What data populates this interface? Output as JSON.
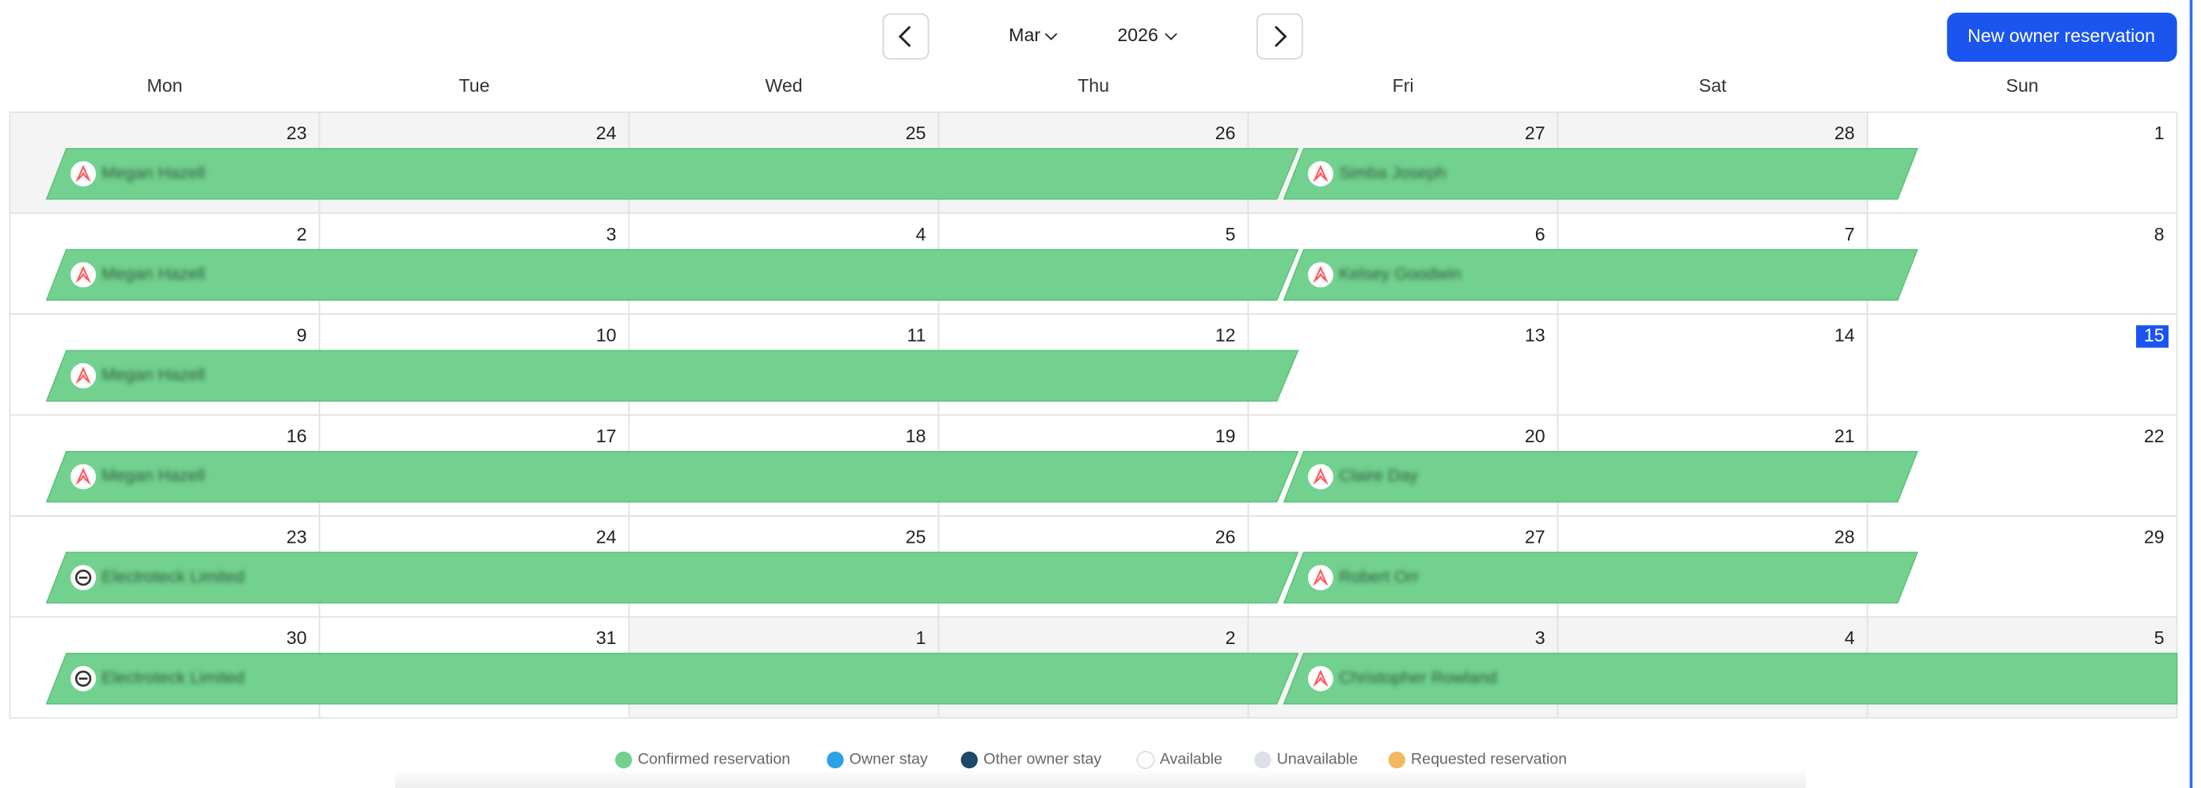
{
  "header": {
    "month": "Mar",
    "year": "2026",
    "new_button": "New owner reservation"
  },
  "weekdays": [
    "Mon",
    "Tue",
    "Wed",
    "Thu",
    "Fri",
    "Sat",
    "Sun"
  ],
  "weeks": [
    {
      "days": [
        "23",
        "24",
        "25",
        "26",
        "27",
        "28",
        "1"
      ],
      "reservations": [
        "Megan Hazell",
        "Simba Joseph"
      ]
    },
    {
      "days": [
        "2",
        "3",
        "4",
        "5",
        "6",
        "7",
        "8"
      ],
      "reservations": [
        "Megan Hazell",
        "Kelsey Goodwin"
      ]
    },
    {
      "days": [
        "9",
        "10",
        "11",
        "12",
        "13",
        "14",
        "15"
      ],
      "reservations": [
        "Megan Hazell"
      ]
    },
    {
      "days": [
        "16",
        "17",
        "18",
        "19",
        "20",
        "21",
        "22"
      ],
      "reservations": [
        "Megan Hazell",
        "Claire Day"
      ]
    },
    {
      "days": [
        "23",
        "24",
        "25",
        "26",
        "27",
        "28",
        "29"
      ],
      "reservations": [
        "Electroteck Limited",
        "Robert Orr"
      ]
    },
    {
      "days": [
        "30",
        "31",
        "1",
        "2",
        "3",
        "4",
        "5"
      ],
      "reservations": [
        "Electroteck Limited",
        "Christopher Rowland"
      ]
    }
  ],
  "legend": [
    "Confirmed reservation",
    "Owner stay",
    "Other owner stay",
    "Available",
    "Unavailable",
    "Requested reservation"
  ]
}
